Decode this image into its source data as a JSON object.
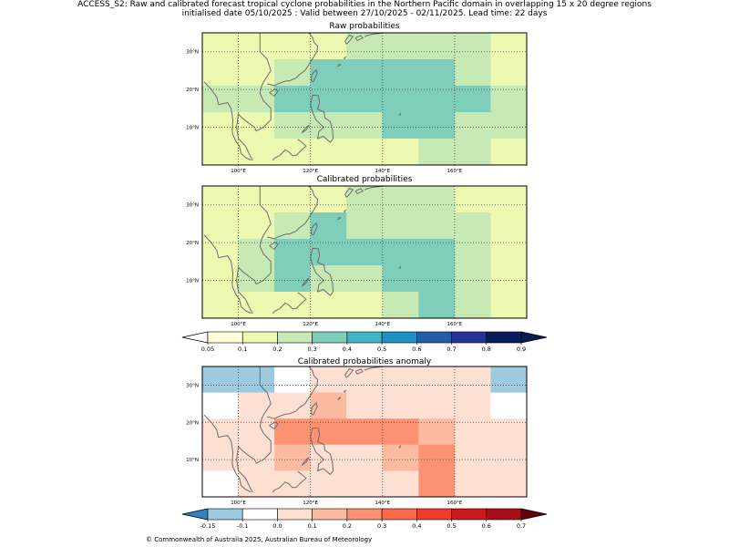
{
  "header": {
    "line1": "ACCESS_S2: Raw and calibrated forecast tropical cyclone probabilities in the Northern Pacific domain in overlapping 15 x 20 degree regions",
    "line2": "initialised date 05/10/2025 :  Valid between 27/10/2025 - 02/11/2025. Lead time: 22 days"
  },
  "panels": {
    "raw": {
      "title": "Raw probabilities",
      "grid": [
        [
          0.1,
          0.1,
          0.15,
          0.15,
          0.2,
          0.2,
          0.2,
          0.2,
          0.15
        ],
        [
          0.1,
          0.15,
          0.25,
          0.3,
          0.3,
          0.3,
          0.3,
          0.25,
          0.15
        ],
        [
          0.2,
          0.2,
          0.35,
          0.35,
          0.35,
          0.35,
          0.35,
          0.3,
          0.2
        ],
        [
          0.15,
          0.15,
          0.2,
          0.2,
          0.2,
          0.3,
          0.3,
          0.25,
          0.2
        ],
        [
          0.15,
          0.15,
          0.15,
          0.15,
          0.1,
          0.15,
          0.2,
          0.2,
          0.15
        ]
      ]
    },
    "calibrated": {
      "title": "Calibrated probabilities",
      "grid": [
        [
          0.1,
          0.1,
          0.15,
          0.15,
          0.2,
          0.2,
          0.2,
          0.15,
          0.1
        ],
        [
          0.1,
          0.15,
          0.25,
          0.3,
          0.25,
          0.25,
          0.25,
          0.2,
          0.1
        ],
        [
          0.15,
          0.2,
          0.35,
          0.35,
          0.35,
          0.35,
          0.3,
          0.2,
          0.15
        ],
        [
          0.15,
          0.2,
          0.3,
          0.25,
          0.25,
          0.3,
          0.35,
          0.2,
          0.15
        ],
        [
          0.1,
          0.15,
          0.15,
          0.15,
          0.15,
          0.2,
          0.35,
          0.2,
          0.15
        ]
      ]
    },
    "anomaly": {
      "title": "Calibrated probabilities anomaly",
      "grid": [
        [
          -0.15,
          -0.15,
          -0.05,
          0,
          0,
          0,
          0,
          0,
          -0.15
        ],
        [
          -0.05,
          0,
          0.05,
          0.15,
          0.05,
          0.05,
          0.05,
          0,
          -0.05
        ],
        [
          0,
          0.05,
          0.25,
          0.25,
          0.25,
          0.25,
          0.15,
          0.05,
          0
        ],
        [
          0,
          0.05,
          0.15,
          0.05,
          0.05,
          0.15,
          0.25,
          0.05,
          0
        ],
        [
          -0.05,
          0,
          0,
          0,
          0,
          0.05,
          0.25,
          0.05,
          0
        ]
      ]
    }
  },
  "axes": {
    "x_ticks": [
      {
        "value": 100,
        "label": "100°E"
      },
      {
        "value": 120,
        "label": "120°E"
      },
      {
        "value": 140,
        "label": "140°E"
      },
      {
        "value": 160,
        "label": "160°E"
      }
    ],
    "y_ticks": [
      {
        "value": 10,
        "label": "10°N"
      },
      {
        "value": 20,
        "label": "20°N"
      },
      {
        "value": 30,
        "label": "30°N"
      }
    ],
    "lon_range": [
      90,
      180
    ],
    "lat_range": [
      0,
      35
    ]
  },
  "colorbars": {
    "probability": {
      "ticks": [
        "0.05",
        "0.1",
        "0.2",
        "0.3",
        "0.4",
        "0.5",
        "0.6",
        "0.7",
        "0.8",
        "0.9"
      ],
      "bounds": [
        0.05,
        0.1,
        0.2,
        0.3,
        0.4,
        0.5,
        0.6,
        0.7,
        0.8,
        0.9
      ],
      "colors": [
        "#ffffd9",
        "#edf8b1",
        "#c7e9b4",
        "#7fcdbb",
        "#41b6c4",
        "#1d91c0",
        "#225ea8",
        "#253494",
        "#081d58"
      ],
      "under": "#ffffff",
      "over": "#081d58"
    },
    "anomaly": {
      "ticks": [
        "-0.15",
        "-0.1",
        "0.0",
        "0.1",
        "0.2",
        "0.3",
        "0.4",
        "0.5",
        "0.6",
        "0.7"
      ],
      "bounds": [
        -0.15,
        -0.1,
        0,
        0.1,
        0.2,
        0.3,
        0.4,
        0.5,
        0.6,
        0.7
      ],
      "colors": [
        "#9ecae1",
        "#ffffff",
        "#fee0d2",
        "#fcbba1",
        "#fc9272",
        "#fb6a4a",
        "#ef3b2c",
        "#cb181d",
        "#a50f15"
      ],
      "under": "#3182bd",
      "over": "#67000d"
    }
  },
  "footer": "© Commonwealth of Australia 2025, Australian Bureau of Meteorology"
}
